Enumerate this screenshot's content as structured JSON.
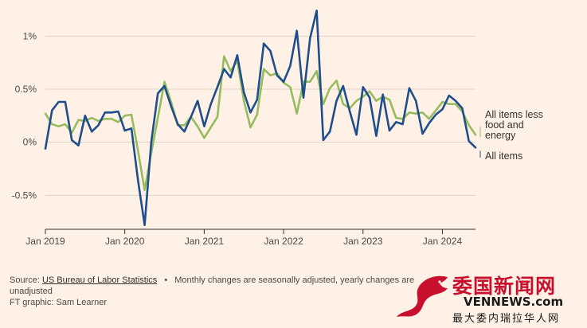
{
  "chart_data": {
    "type": "line",
    "yticks": [
      {
        "value": 1.0,
        "label": "1%"
      },
      {
        "value": 0.5,
        "label": "0.5%"
      },
      {
        "value": 0.0,
        "label": "0%"
      },
      {
        "value": -0.5,
        "label": "-0.5%"
      }
    ],
    "xticks": [
      {
        "value": 0,
        "label": "Jan 2019"
      },
      {
        "value": 12,
        "label": "Jan 2020"
      },
      {
        "value": 24,
        "label": "Jan 2021"
      },
      {
        "value": 36,
        "label": "Jan 2022"
      },
      {
        "value": 48,
        "label": "Jan 2023"
      },
      {
        "value": 60,
        "label": "Jan 2024"
      }
    ],
    "ylim": [
      -0.82,
      1.28
    ],
    "xlim": [
      0,
      65
    ],
    "grid": "horizontal",
    "series": [
      {
        "name": "All items less food and energy",
        "color": "#96bc5f",
        "values": [
          0.27,
          0.17,
          0.15,
          0.17,
          0.09,
          0.21,
          0.2,
          0.23,
          0.2,
          0.22,
          0.22,
          0.19,
          0.25,
          0.26,
          -0.08,
          -0.45,
          -0.1,
          0.23,
          0.57,
          0.38,
          0.16,
          0.16,
          0.24,
          0.15,
          0.04,
          0.14,
          0.24,
          0.81,
          0.67,
          0.77,
          0.39,
          0.14,
          0.26,
          0.69,
          0.63,
          0.65,
          0.56,
          0.52,
          0.27,
          0.57,
          0.57,
          0.67,
          0.36,
          0.51,
          0.58,
          0.36,
          0.32,
          0.39,
          0.43,
          0.48,
          0.39,
          0.43,
          0.4,
          0.23,
          0.22,
          0.28,
          0.27,
          0.28,
          0.22,
          0.3,
          0.38,
          0.36,
          0.36,
          0.29,
          0.16,
          0.07
        ]
      },
      {
        "name": "All items",
        "color": "#1f4e8c",
        "values": [
          -0.06,
          0.3,
          0.38,
          0.38,
          0.02,
          -0.03,
          0.25,
          0.1,
          0.16,
          0.28,
          0.28,
          0.29,
          0.11,
          0.13,
          -0.36,
          -0.78,
          0.0,
          0.46,
          0.53,
          0.34,
          0.17,
          0.1,
          0.24,
          0.39,
          0.15,
          0.36,
          0.52,
          0.69,
          0.61,
          0.82,
          0.47,
          0.28,
          0.4,
          0.93,
          0.86,
          0.63,
          0.57,
          0.72,
          1.05,
          0.42,
          0.98,
          1.24,
          0.02,
          0.1,
          0.39,
          0.53,
          0.29,
          0.07,
          0.52,
          0.42,
          0.06,
          0.45,
          0.11,
          0.19,
          0.17,
          0.51,
          0.39,
          0.08,
          0.18,
          0.26,
          0.31,
          0.44,
          0.39,
          0.32,
          0.01,
          -0.05
        ]
      }
    ],
    "annotations": [
      {
        "series": 0,
        "lines": [
          "All items less",
          "food and",
          "energy"
        ]
      },
      {
        "series": 1,
        "lines": [
          "All items"
        ]
      }
    ]
  },
  "footer": {
    "source_prefix": "Source: ",
    "source_link": "US Bureau of Labor Statistics",
    "separator": "•",
    "note": "Monthly changes are seasonally adjusted, yearly changes are unadjusted",
    "credit": "FT graphic: Sam Learner"
  },
  "watermark": {
    "chinese": "委国新闻网",
    "english": "VENNEWS.com",
    "subtitle": "最大委内瑞拉华人网",
    "logo": "dragon-logo"
  }
}
